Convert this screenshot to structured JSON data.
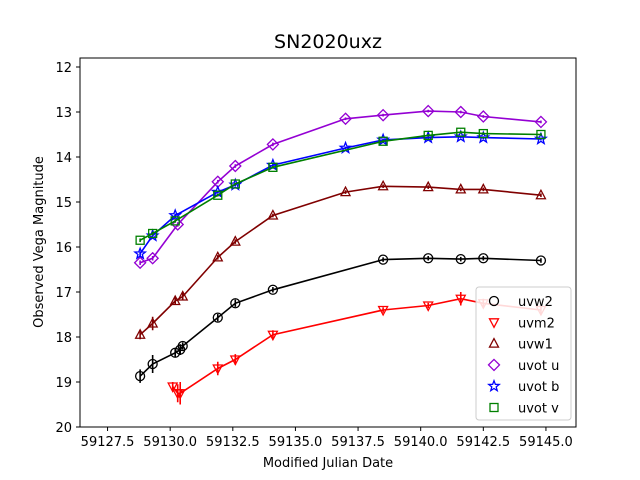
{
  "chart_data": {
    "type": "scatter",
    "title": "SN2020uxz",
    "xlabel": "Modified Julian Date",
    "ylabel": "Observed Vega Magnitude",
    "xlim": [
      59126.4,
      59146.2
    ],
    "ylim": [
      20,
      11.8
    ],
    "y_inverted": true,
    "xticks": [
      "59127.5",
      "59130.0",
      "59132.5",
      "59135.0",
      "59137.5",
      "59140.0",
      "59142.5",
      "59145.0"
    ],
    "xtick_values": [
      59127.5,
      59130.0,
      59132.5,
      59135.0,
      59137.5,
      59140.0,
      59142.5,
      59145.0
    ],
    "yticks": [
      "12",
      "13",
      "14",
      "15",
      "16",
      "17",
      "18",
      "19",
      "20"
    ],
    "ytick_values": [
      12,
      13,
      14,
      15,
      16,
      17,
      18,
      19,
      20
    ],
    "grid": false,
    "legend_position": "bottom-right",
    "series": [
      {
        "name": "uvw2",
        "color": "#000000",
        "marker": "circle",
        "x": [
          59128.8,
          59129.3,
          59130.2,
          59130.4,
          59130.5,
          59131.9,
          59132.6,
          59134.1,
          59138.5,
          59140.3,
          59141.6,
          59142.5,
          59144.8
        ],
        "y": [
          18.87,
          18.6,
          18.35,
          18.28,
          18.2,
          17.57,
          17.25,
          16.95,
          16.28,
          16.25,
          16.27,
          16.25,
          16.3
        ],
        "err": [
          0.15,
          0.2,
          0.1,
          0.12,
          0.08,
          0.08,
          0.08,
          0.06,
          0.05,
          0.05,
          0.05,
          0.05,
          0.05
        ]
      },
      {
        "name": "uvm2",
        "color": "#ff0000",
        "marker": "triangle-down",
        "x": [
          59130.1,
          59130.3,
          59130.4,
          59131.9,
          59132.6,
          59134.1,
          59138.5,
          59140.3,
          59141.6,
          59142.5,
          59144.8
        ],
        "y": [
          19.1,
          19.25,
          19.25,
          18.7,
          18.5,
          17.95,
          17.4,
          17.3,
          17.15,
          17.25,
          17.4
        ],
        "err": [
          0.1,
          0.2,
          0.25,
          0.15,
          0.12,
          0.1,
          0.06,
          0.06,
          0.15,
          0.1,
          0.08
        ]
      },
      {
        "name": "uvw1",
        "color": "#800000",
        "marker": "triangle-up",
        "x": [
          59128.8,
          59129.3,
          59130.2,
          59130.5,
          59131.9,
          59132.6,
          59134.1,
          59137.0,
          59138.5,
          59140.3,
          59141.6,
          59142.5,
          59144.8
        ],
        "y": [
          17.95,
          17.7,
          17.2,
          17.1,
          16.23,
          15.88,
          15.3,
          14.78,
          14.65,
          14.67,
          14.72,
          14.72,
          14.85
        ],
        "err": [
          0.1,
          0.15,
          0.08,
          0.08,
          0.05,
          0.05,
          0.04,
          0.04,
          0.04,
          0.04,
          0.04,
          0.04,
          0.04
        ]
      },
      {
        "name": "uvot u",
        "color": "#9400d3",
        "marker": "diamond",
        "x": [
          59128.8,
          59129.3,
          59130.3,
          59131.9,
          59132.6,
          59134.1,
          59137.0,
          59138.5,
          59140.3,
          59141.6,
          59142.5,
          59144.8
        ],
        "y": [
          16.35,
          16.25,
          15.5,
          14.55,
          14.2,
          13.72,
          13.15,
          13.07,
          12.98,
          13.0,
          13.1,
          13.22
        ],
        "err": [
          0.05,
          0.05,
          0.05,
          0.04,
          0.04,
          0.04,
          0.03,
          0.03,
          0.03,
          0.03,
          0.03,
          0.03
        ]
      },
      {
        "name": "uvot b",
        "color": "#0000ff",
        "marker": "star",
        "x": [
          59128.8,
          59129.3,
          59130.2,
          59131.9,
          59132.6,
          59134.1,
          59137.0,
          59138.5,
          59140.3,
          59141.6,
          59142.5,
          59144.8
        ],
        "y": [
          16.15,
          15.75,
          15.3,
          14.78,
          14.62,
          14.18,
          13.8,
          13.62,
          13.57,
          13.55,
          13.57,
          13.6
        ],
        "err": [
          0.05,
          0.05,
          0.04,
          0.03,
          0.03,
          0.03,
          0.03,
          0.03,
          0.03,
          0.03,
          0.03,
          0.03
        ]
      },
      {
        "name": "uvot v",
        "color": "#008000",
        "marker": "square",
        "x": [
          59128.8,
          59129.3,
          59130.2,
          59131.9,
          59132.6,
          59134.1,
          59138.5,
          59140.3,
          59141.6,
          59142.5,
          59144.8
        ],
        "y": [
          15.85,
          15.7,
          15.42,
          14.85,
          14.6,
          14.23,
          13.65,
          13.52,
          13.45,
          13.48,
          13.5
        ],
        "err": [
          0.04,
          0.04,
          0.04,
          0.03,
          0.03,
          0.03,
          0.03,
          0.03,
          0.03,
          0.03,
          0.03
        ]
      }
    ]
  }
}
